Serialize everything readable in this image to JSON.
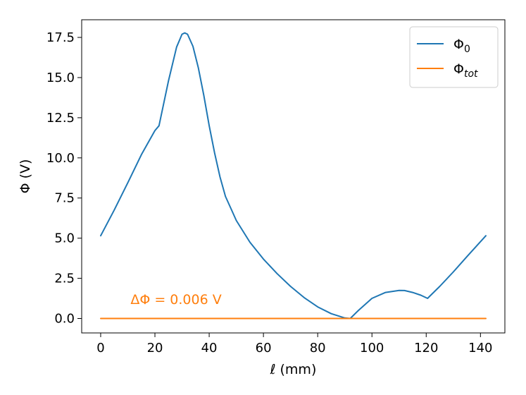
{
  "chart_data": {
    "type": "line",
    "title": "",
    "xlabel": "ℓ (mm)",
    "ylabel": "Φ (V)",
    "xlim": [
      -7,
      149
    ],
    "ylim": [
      -0.9,
      18.6
    ],
    "xticks": [
      0,
      20,
      40,
      60,
      80,
      100,
      120,
      140
    ],
    "xtick_labels": [
      "0",
      "20",
      "40",
      "60",
      "80",
      "100",
      "120",
      "140"
    ],
    "yticks": [
      0.0,
      2.5,
      5.0,
      7.5,
      10.0,
      12.5,
      15.0,
      17.5
    ],
    "ytick_labels": [
      "0.0",
      "2.5",
      "5.0",
      "7.5",
      "10.0",
      "12.5",
      "15.0",
      "17.5"
    ],
    "grid": false,
    "legend_position": "top-right",
    "series": [
      {
        "name": "Φ0",
        "legend_base": "Φ",
        "legend_sub": "0",
        "color": "#1f77b4",
        "x": [
          0,
          5,
          10,
          15,
          20,
          21.5,
          25,
          28,
          30,
          31,
          32,
          34,
          36,
          38,
          40,
          42,
          44,
          46,
          48,
          50,
          55,
          60,
          65,
          70,
          75,
          80,
          85,
          90,
          92,
          95,
          100,
          105,
          110,
          112,
          115,
          118,
          120.5,
          125,
          130,
          135,
          142
        ],
        "y": [
          5.15,
          6.75,
          8.45,
          10.2,
          11.7,
          12.0,
          14.8,
          16.9,
          17.7,
          17.78,
          17.7,
          16.95,
          15.6,
          13.9,
          12.0,
          10.3,
          8.8,
          7.6,
          6.85,
          6.1,
          4.75,
          3.7,
          2.8,
          2.0,
          1.3,
          0.72,
          0.3,
          0.03,
          0.0,
          0.5,
          1.25,
          1.62,
          1.75,
          1.74,
          1.62,
          1.45,
          1.25,
          2.0,
          2.9,
          3.85,
          5.15
        ]
      },
      {
        "name": "Φtot",
        "legend_base": "Φ",
        "legend_sub": "tot",
        "color": "#ff7f0e",
        "x": [
          0,
          142
        ],
        "y": [
          0.0,
          0.0
        ]
      }
    ],
    "annotations": [
      {
        "text": "ΔΦ =  0.006 V",
        "x": 11,
        "y": 0.9,
        "color": "#ff7f0e"
      }
    ]
  }
}
